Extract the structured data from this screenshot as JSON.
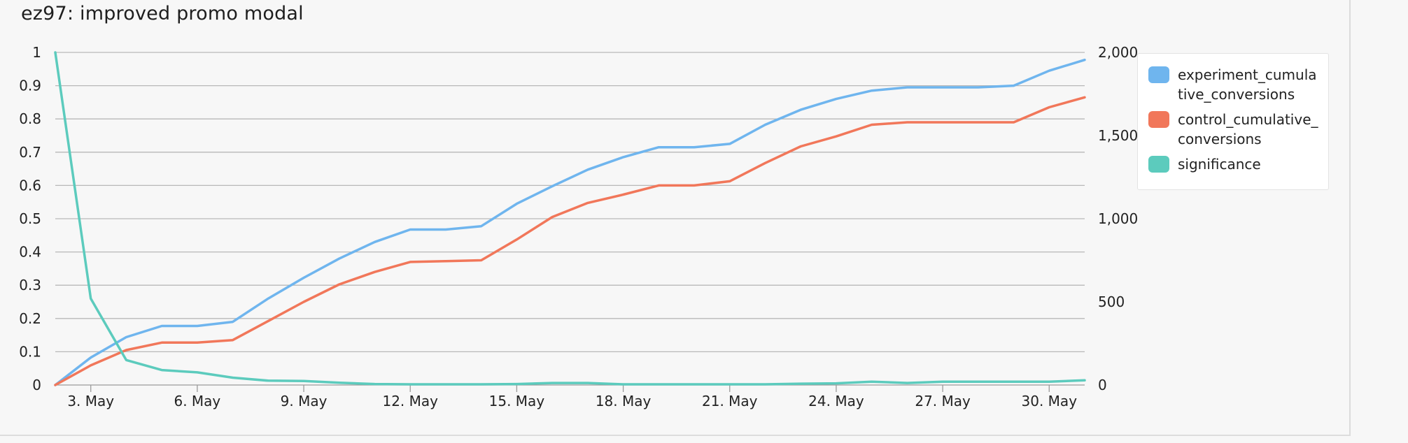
{
  "title": "ez97: improved promo modal",
  "colors": {
    "experiment": "#6fb5ee",
    "control": "#f1775a",
    "significance": "#5ccbbd",
    "grid": "#b8b8b8",
    "axis": "#9a9a9a"
  },
  "legend": [
    {
      "label": "experiment_cumulative_conversions",
      "color": "#6fb5ee"
    },
    {
      "label": "control_cumulative_conversions",
      "color": "#f1775a"
    },
    {
      "label": "significance",
      "color": "#5ccbbd"
    }
  ],
  "chart_data": {
    "type": "line",
    "x_tick_labels": [
      "3. May",
      "6. May",
      "9. May",
      "12. May",
      "15. May",
      "18. May",
      "21. May",
      "24. May",
      "27. May",
      "30. May"
    ],
    "x_tick_days": [
      3,
      6,
      9,
      12,
      15,
      18,
      21,
      24,
      27,
      30
    ],
    "x_range_days": [
      2,
      31
    ],
    "x": [
      2,
      3,
      4,
      5,
      6,
      7,
      8,
      9,
      10,
      11,
      12,
      13,
      14,
      15,
      16,
      17,
      18,
      19,
      20,
      21,
      22,
      23,
      24,
      25,
      26,
      27,
      28,
      29,
      30,
      31
    ],
    "left_axis": {
      "ticks": [
        "0",
        "0.1",
        "0.2",
        "0.3",
        "0.4",
        "0.5",
        "0.6",
        "0.7",
        "0.8",
        "0.9",
        "1"
      ],
      "ylim": [
        0,
        1
      ]
    },
    "right_axis": {
      "ticks": [
        "0",
        "500",
        "1,000",
        "1,500",
        "2,000"
      ],
      "ylim": [
        0,
        2000
      ]
    },
    "series": [
      {
        "name": "experiment_cumulative_conversions",
        "axis": "right",
        "values": [
          0,
          165,
          288,
          355,
          355,
          380,
          520,
          645,
          760,
          860,
          935,
          935,
          955,
          1090,
          1195,
          1295,
          1370,
          1430,
          1430,
          1450,
          1565,
          1655,
          1720,
          1770,
          1790,
          1790,
          1790,
          1800,
          1890,
          1955
        ]
      },
      {
        "name": "control_cumulative_conversions",
        "axis": "right",
        "values": [
          0,
          118,
          210,
          255,
          255,
          270,
          385,
          500,
          605,
          680,
          740,
          745,
          750,
          875,
          1010,
          1095,
          1145,
          1200,
          1200,
          1225,
          1335,
          1435,
          1495,
          1565,
          1580,
          1580,
          1580,
          1580,
          1670,
          1730
        ]
      },
      {
        "name": "significance",
        "axis": "left",
        "values": [
          1.0,
          0.26,
          0.075,
          0.045,
          0.038,
          0.022,
          0.013,
          0.012,
          0.007,
          0.003,
          0.002,
          0.002,
          0.002,
          0.003,
          0.006,
          0.006,
          0.002,
          0.002,
          0.002,
          0.002,
          0.002,
          0.004,
          0.005,
          0.01,
          0.006,
          0.01,
          0.01,
          0.01,
          0.01,
          0.014
        ]
      }
    ]
  }
}
